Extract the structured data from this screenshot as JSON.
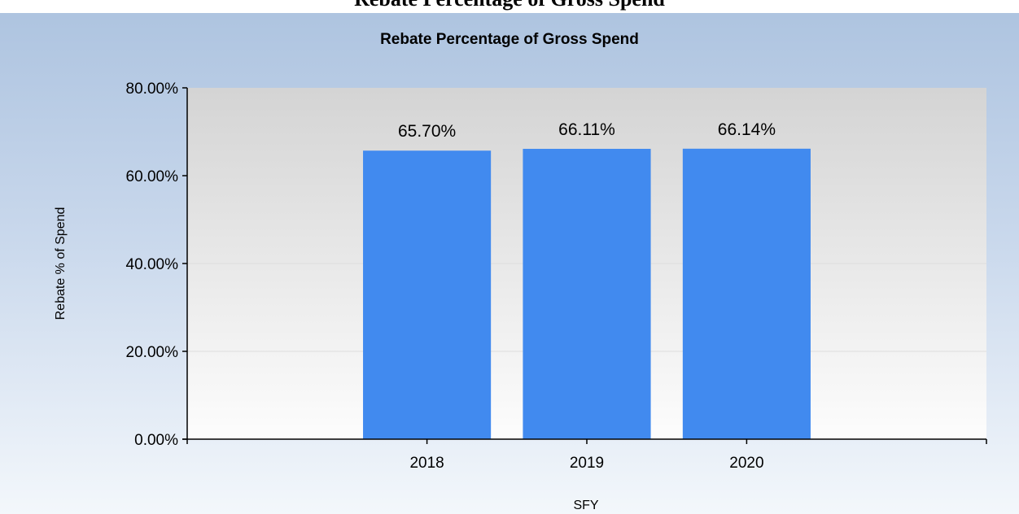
{
  "page": {
    "heading": "Rebate Percentage of Gross Spend"
  },
  "chart_data": {
    "type": "bar",
    "title": "Rebate Percentage of Gross Spend",
    "xlabel": "SFY",
    "ylabel": "Rebate % of Spend",
    "categories": [
      "2018",
      "2019",
      "2020"
    ],
    "values": [
      65.7,
      66.11,
      66.14
    ],
    "value_labels": [
      "65.70%",
      "66.11%",
      "66.14%"
    ],
    "ylim": [
      0,
      80
    ],
    "yticks": [
      0,
      20,
      40,
      60,
      80
    ],
    "ytick_labels": [
      "0.00%",
      "20.00%",
      "40.00%",
      "60.00%",
      "80.00%"
    ],
    "grid": true,
    "legend": "none",
    "bar_color": "#418AEF"
  }
}
